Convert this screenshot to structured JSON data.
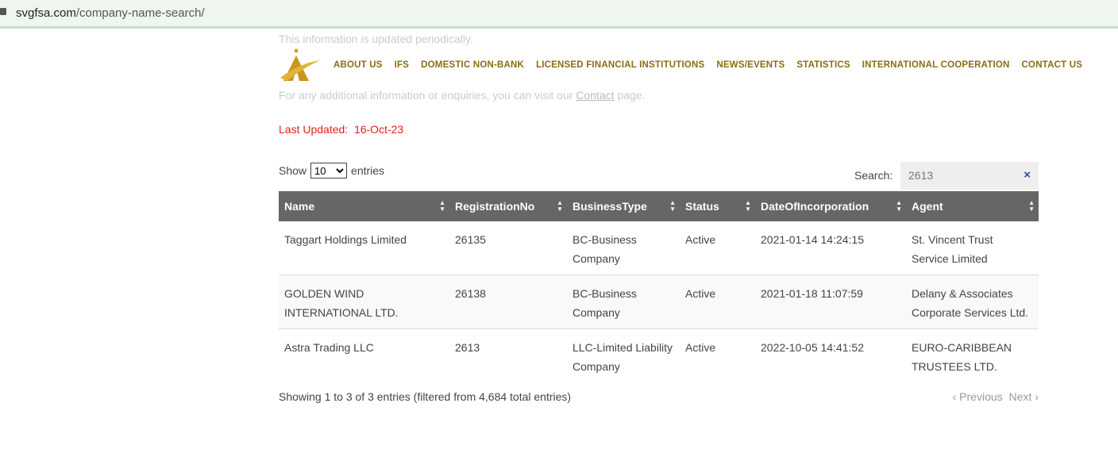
{
  "browser": {
    "domain": "svgfsa.com",
    "path": "/company-name-search/"
  },
  "intro": {
    "line1": "This information is updated periodically.",
    "line2_prefix": "For any additional information or enquiries, you can visit our ",
    "line2_link": "Contact",
    "line2_suffix": " page."
  },
  "nav": [
    "ABOUT US",
    "IFS",
    "DOMESTIC NON-BANK",
    "LICENSED FINANCIAL INSTITUTIONS",
    "NEWS/EVENTS",
    "STATISTICS",
    "INTERNATIONAL COOPERATION",
    "CONTACT US"
  ],
  "last_updated": "Last Updated:  16-Oct-23",
  "length": {
    "show": "Show",
    "value": "10",
    "entries": "entries"
  },
  "search": {
    "label": "Search:",
    "value": "2613",
    "clear": "×"
  },
  "table": {
    "headers": [
      "Name",
      "RegistrationNo",
      "BusinessType",
      "Status",
      "DateOfIncorporation",
      "Agent"
    ],
    "rows": [
      [
        "Taggart Holdings Limited",
        "26135",
        "BC-Business Company",
        "Active",
        "2021-01-14 14:24:15",
        "St. Vincent Trust Service Limited"
      ],
      [
        "GOLDEN WIND INTERNATIONAL LTD.",
        "26138",
        "BC-Business Company",
        "Active",
        "2021-01-18 11:07:59",
        "Delany & Associates Corporate Services Ltd."
      ],
      [
        "Astra Trading LLC",
        "2613",
        "LLC-Limited Liability Company",
        "Active",
        "2022-10-05 14:41:52",
        "EURO-CARIBBEAN TRUSTEES LTD."
      ]
    ]
  },
  "info": "Showing 1 to 3 of 3 entries (filtered from 4,684 total entries)",
  "pagination": {
    "previous": "Previous",
    "next": "Next"
  },
  "colors": {
    "nav": "#8a6d12",
    "header_bg": "#666666",
    "updated": "#e02020"
  }
}
